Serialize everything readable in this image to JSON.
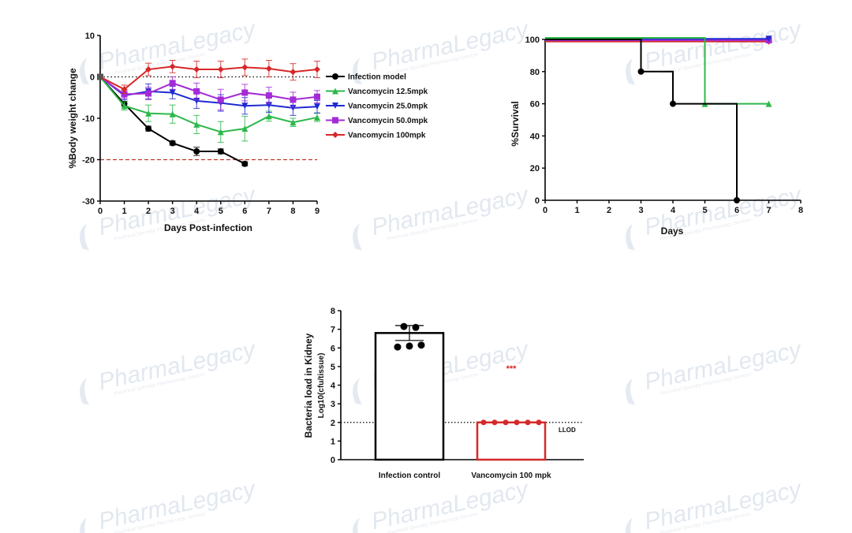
{
  "watermark": {
    "brand": "PharmaLegacy",
    "tagline": "Preclinical Specialty Pharmacology Services"
  },
  "chart_data": [
    {
      "type": "line",
      "xlabel": "Days  Post-infection",
      "ylabel": "%Body weight change",
      "xlim": [
        0,
        9
      ],
      "ylim": [
        -30,
        10
      ],
      "xticks": [
        0,
        1,
        2,
        3,
        4,
        5,
        6,
        7,
        8,
        9
      ],
      "yticks": [
        10,
        0,
        -10,
        -20,
        -30
      ],
      "legend_position": "right",
      "reference_lines": [
        {
          "y": 0,
          "style": "dotted",
          "color": "#000000"
        },
        {
          "y": -20,
          "style": "dashed",
          "color": "#c0392b"
        }
      ],
      "series": [
        {
          "name": "Infection model",
          "color": "#000000",
          "marker": "circle",
          "x": [
            0,
            1,
            2,
            3,
            4,
            5,
            6
          ],
          "y": [
            0,
            -6.5,
            -12.5,
            -16,
            -18,
            -18,
            -21
          ],
          "err": [
            0,
            0.6,
            0.6,
            0.5,
            1.0,
            0.6,
            0.5
          ]
        },
        {
          "name": "Vancomycin 12.5mpk",
          "color": "#2db84a",
          "marker": "triangle",
          "x": [
            0,
            1,
            2,
            3,
            4,
            5,
            6,
            7,
            8,
            9
          ],
          "y": [
            0,
            -7,
            -8.8,
            -9,
            -11.5,
            -13.3,
            -12.5,
            -9.5,
            -11,
            -9.8
          ],
          "err": [
            0,
            1.0,
            2.0,
            2.2,
            2.2,
            2.5,
            3.0,
            1.2,
            1.0,
            1.0
          ]
        },
        {
          "name": "Vancomycin 25.0mpk",
          "color": "#1f2bd1",
          "marker": "triangle-down",
          "x": [
            0,
            1,
            2,
            3,
            4,
            5,
            6,
            7,
            8,
            9
          ],
          "y": [
            0,
            -4.5,
            -3.5,
            -3.8,
            -5.8,
            -6.3,
            -7,
            -6.8,
            -7.5,
            -7.2
          ],
          "err": [
            0,
            1.0,
            1.8,
            1.5,
            1.8,
            2.0,
            2.0,
            1.8,
            1.8,
            1.5
          ]
        },
        {
          "name": "Vancomycin 50.0mpk",
          "color": "#a32bd6",
          "marker": "square",
          "x": [
            0,
            1,
            2,
            3,
            4,
            5,
            6,
            7,
            8,
            9
          ],
          "y": [
            0,
            -4.2,
            -4,
            -1.5,
            -3.5,
            -5.5,
            -3.8,
            -4.5,
            -5.5,
            -4.8
          ],
          "err": [
            0,
            1.0,
            1.5,
            1.5,
            2.0,
            2.5,
            2.0,
            2.0,
            1.8,
            1.5
          ]
        },
        {
          "name": "Vancomycin 100mpk",
          "color": "#d62828",
          "marker": "diamond",
          "x": [
            0,
            1,
            2,
            3,
            4,
            5,
            6,
            7,
            8,
            9
          ],
          "y": [
            0,
            -3,
            1.8,
            2.5,
            1.8,
            1.8,
            2.3,
            2,
            1.2,
            1.8
          ],
          "err": [
            0,
            1.0,
            1.5,
            1.5,
            2.0,
            2.0,
            2.0,
            2.0,
            2.0,
            2.0
          ]
        }
      ]
    },
    {
      "type": "line",
      "step": true,
      "xlabel": "Days",
      "ylabel": "%Survival",
      "xlim": [
        0,
        8
      ],
      "ylim": [
        0,
        100
      ],
      "xticks": [
        0,
        1,
        2,
        3,
        4,
        5,
        6,
        7,
        8
      ],
      "yticks": [
        0,
        20,
        40,
        60,
        80,
        100
      ],
      "series": [
        {
          "name": "Infection model",
          "color": "#000000",
          "marker": "circle",
          "x": [
            0,
            3,
            4,
            6
          ],
          "y": [
            100,
            80,
            60,
            0
          ]
        },
        {
          "name": "Vancomycin 12.5mpk",
          "color": "#2db84a",
          "marker": "triangle",
          "x": [
            0,
            5,
            7
          ],
          "y": [
            100,
            60,
            60
          ]
        },
        {
          "name": "Vancomycin 25.0mpk",
          "color": "#1f2bd1",
          "marker": "triangle-down",
          "x": [
            0,
            7
          ],
          "y": [
            100,
            100
          ]
        },
        {
          "name": "Vancomycin 50.0mpk",
          "color": "#a32bd6",
          "marker": "square",
          "x": [
            0,
            7
          ],
          "y": [
            100,
            100
          ]
        },
        {
          "name": "Vancomycin 100mpk",
          "color": "#d62828",
          "marker": "diamond",
          "x": [
            0,
            7
          ],
          "y": [
            100,
            100
          ]
        }
      ]
    },
    {
      "type": "bar",
      "ylabel": "Bacteria load in Kidney",
      "ylabel2": "Log10(cfu/tissue)",
      "ylim": [
        0,
        8
      ],
      "yticks": [
        0,
        1,
        2,
        3,
        4,
        5,
        6,
        7,
        8
      ],
      "categories": [
        "Infection control",
        "Vancomycin 100 mpk"
      ],
      "values": [
        6.8,
        2.0
      ],
      "errors": [
        0.4,
        0
      ],
      "bar_colors": [
        "#000000",
        "#d62828"
      ],
      "points": [
        [
          7.15,
          7.1,
          6.05,
          6.1,
          6.15
        ],
        [
          2,
          2,
          2,
          2,
          2,
          2
        ]
      ],
      "annotation": "***",
      "annotation_color": "#d62828",
      "llod": 2,
      "llod_label": "LLOD"
    }
  ]
}
